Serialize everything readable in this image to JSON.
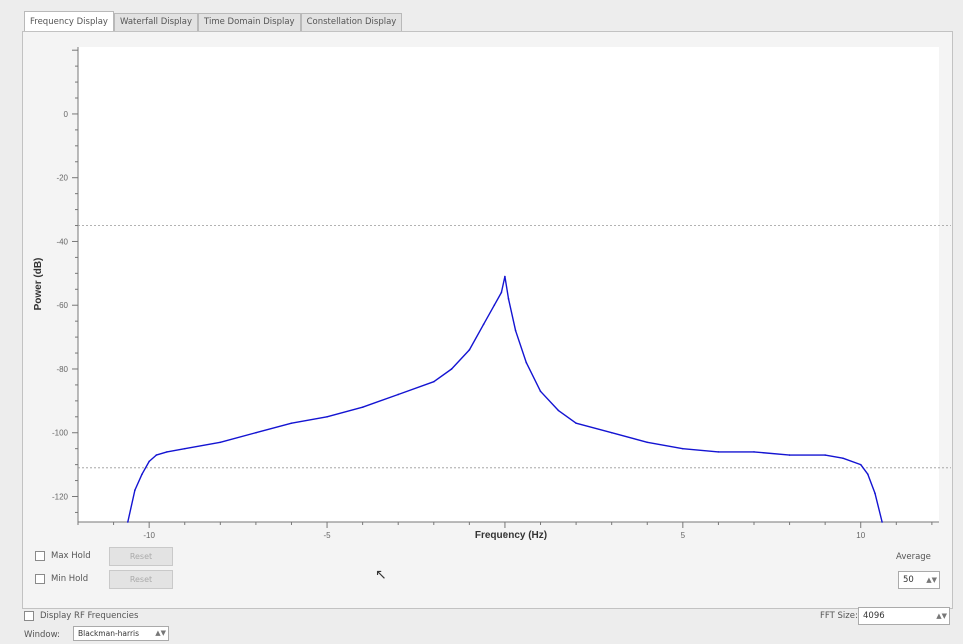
{
  "tabs": [
    {
      "label": "Frequency Display",
      "active": true
    },
    {
      "label": "Waterfall Display",
      "active": false
    },
    {
      "label": "Time Domain Display",
      "active": false
    },
    {
      "label": "Constellation Display",
      "active": false
    }
  ],
  "controls": {
    "max_hold_label": "Max Hold",
    "max_hold_checked": false,
    "max_reset_label": "Reset",
    "min_hold_label": "Min Hold",
    "min_hold_checked": false,
    "min_reset_label": "Reset",
    "average_label": "Average",
    "average_value": "50",
    "display_rf_label": "Display RF Frequencies",
    "display_rf_checked": false,
    "fft_size_label": "FFT Size:",
    "fft_size_value": "4096",
    "window_label": "Window:",
    "window_value": "Blackman-harris"
  },
  "colors": {
    "trace": "#1414d2",
    "background": "#ffffff"
  },
  "chart_data": {
    "type": "line",
    "title": "",
    "xlabel": "Frequency (Hz)",
    "ylabel": "Power (dB)",
    "xlim": [
      -12,
      12.2
    ],
    "ylim": [
      -128,
      21
    ],
    "xticks": [
      -10,
      -5,
      0,
      5,
      10
    ],
    "yticks": [
      0,
      -20,
      -40,
      -60,
      -80,
      -100,
      -120
    ],
    "reference_lines": [
      -35,
      -111
    ],
    "grid": false,
    "series": [
      {
        "x": [
          -10.6,
          -10.4,
          -10.2,
          -10.0,
          -9.8,
          -9.5,
          -9.0,
          -8.0,
          -7.0,
          -6.0,
          -5.0,
          -4.0,
          -3.0,
          -2.0,
          -1.5,
          -1.0,
          -0.6,
          -0.3,
          -0.1,
          0.0,
          0.1,
          0.3,
          0.6,
          1.0,
          1.5,
          2.0,
          3.0,
          4.0,
          5.0,
          6.0,
          7.0,
          8.0,
          9.0,
          9.5,
          10.0,
          10.2,
          10.4,
          10.6
        ],
        "y": [
          -128,
          -118,
          -113,
          -109,
          -107,
          -106,
          -105,
          -103,
          -100,
          -97,
          -95,
          -92,
          -88,
          -84,
          -80,
          -74,
          -66,
          -60,
          -56,
          -51,
          -58,
          -68,
          -78,
          -87,
          -93,
          -97,
          -100,
          -103,
          -105,
          -106,
          -106,
          -107,
          -107,
          -108,
          -110,
          -113,
          -119,
          -128
        ]
      }
    ]
  }
}
